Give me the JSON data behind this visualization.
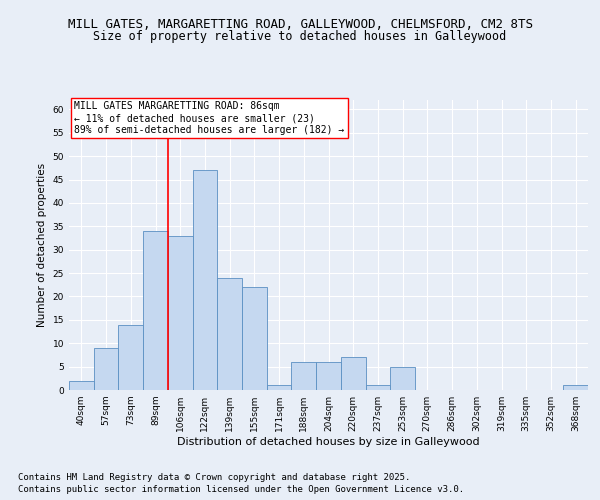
{
  "title_line1": "MILL GATES, MARGARETTING ROAD, GALLEYWOOD, CHELMSFORD, CM2 8TS",
  "title_line2": "Size of property relative to detached houses in Galleywood",
  "xlabel": "Distribution of detached houses by size in Galleywood",
  "ylabel": "Number of detached properties",
  "categories": [
    "40sqm",
    "57sqm",
    "73sqm",
    "89sqm",
    "106sqm",
    "122sqm",
    "139sqm",
    "155sqm",
    "171sqm",
    "188sqm",
    "204sqm",
    "220sqm",
    "237sqm",
    "253sqm",
    "270sqm",
    "286sqm",
    "302sqm",
    "319sqm",
    "335sqm",
    "352sqm",
    "368sqm"
  ],
  "values": [
    2,
    9,
    14,
    34,
    33,
    47,
    24,
    22,
    1,
    6,
    6,
    7,
    1,
    5,
    0,
    0,
    0,
    0,
    0,
    0,
    1
  ],
  "bar_color": "#c5d8f0",
  "bar_edge_color": "#5a8fc2",
  "vline_x": 3.5,
  "vline_color": "red",
  "annotation_text": "MILL GATES MARGARETTING ROAD: 86sqm\n← 11% of detached houses are smaller (23)\n89% of semi-detached houses are larger (182) →",
  "annotation_box_color": "white",
  "annotation_box_edge": "red",
  "ylim": [
    0,
    62
  ],
  "yticks": [
    0,
    5,
    10,
    15,
    20,
    25,
    30,
    35,
    40,
    45,
    50,
    55,
    60
  ],
  "bg_color": "#e8eef7",
  "plot_bg_color": "#e8eef7",
  "footer_line1": "Contains HM Land Registry data © Crown copyright and database right 2025.",
  "footer_line2": "Contains public sector information licensed under the Open Government Licence v3.0.",
  "title_fontsize": 9,
  "subtitle_fontsize": 8.5,
  "tick_fontsize": 6.5,
  "annotation_fontsize": 7,
  "footer_fontsize": 6.5,
  "ylabel_fontsize": 7.5,
  "xlabel_fontsize": 8
}
